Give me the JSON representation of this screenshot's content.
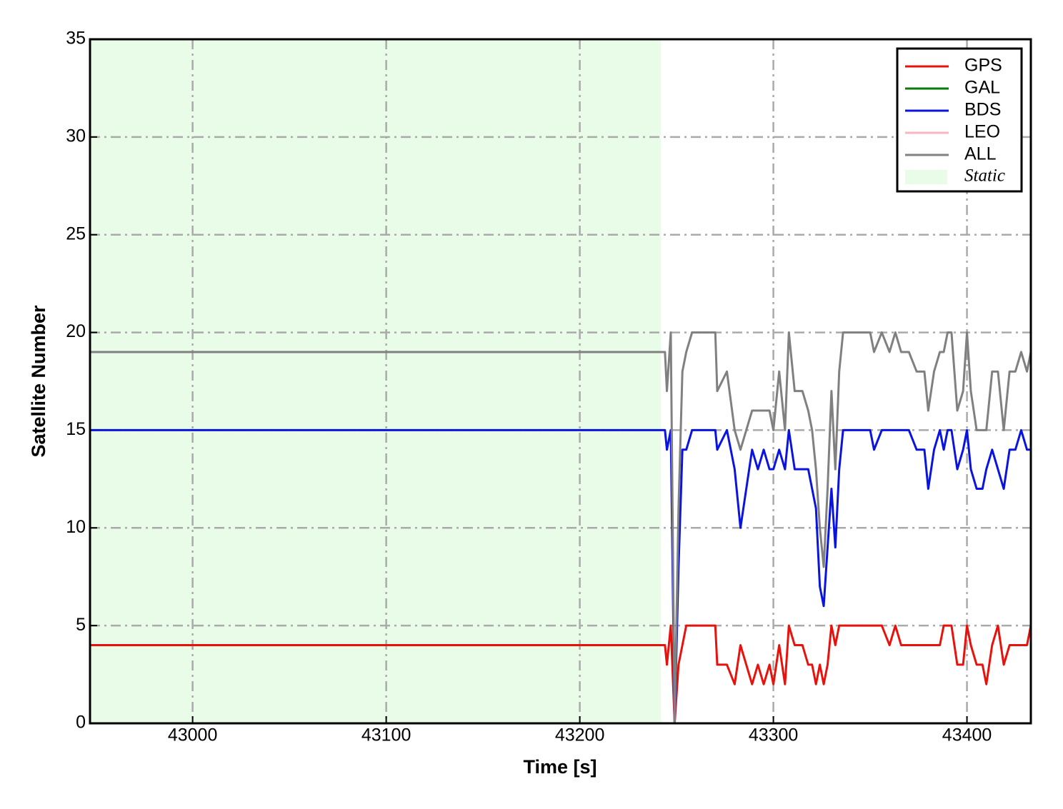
{
  "chart_data": {
    "type": "line",
    "xlabel": "Time [s]",
    "ylabel": "Satellite Number",
    "xlim": [
      42947,
      43433
    ],
    "ylim": [
      0,
      35
    ],
    "xticks": [
      43000,
      43100,
      43200,
      43300,
      43400
    ],
    "yticks": [
      0,
      5,
      10,
      15,
      20,
      25,
      30,
      35
    ],
    "grid": true,
    "legend": "upper right",
    "span": {
      "label": "Static",
      "xrange": [
        42947,
        43242
      ],
      "color": "#e8fce8"
    },
    "x": [
      42947,
      43242,
      43244,
      43245,
      43247,
      43249,
      43251,
      43253,
      43255,
      43258,
      43262,
      43266,
      43270,
      43271,
      43276,
      43280,
      43283,
      43286,
      43289,
      43292,
      43295,
      43298,
      43300,
      43303,
      43306,
      43308,
      43311,
      43315,
      43318,
      43320,
      43322,
      43324,
      43326,
      43328,
      43330,
      43332,
      43334,
      43336,
      43340,
      43345,
      43350,
      43352,
      43356,
      43360,
      43363,
      43366,
      43370,
      43374,
      43378,
      43380,
      43383,
      43386,
      43388,
      43390,
      43392,
      43395,
      43398,
      43400,
      43402,
      43405,
      43408,
      43410,
      43413,
      43416,
      43419,
      43422,
      43425,
      43428,
      43431,
      43433
    ],
    "series": [
      {
        "name": "GPS",
        "color": "#e8120c",
        "values": [
          4,
          4,
          4,
          3,
          5,
          0,
          3,
          4,
          5,
          5,
          5,
          5,
          5,
          3,
          3,
          2,
          4,
          3,
          2,
          3,
          2,
          3,
          2,
          4,
          2,
          5,
          4,
          4,
          3,
          3,
          2,
          3,
          2,
          3,
          5,
          4,
          5,
          5,
          5,
          5,
          5,
          5,
          5,
          4,
          5,
          4,
          4,
          4,
          4,
          4,
          4,
          4,
          5,
          5,
          5,
          3,
          3,
          5,
          4,
          3,
          3,
          2,
          4,
          5,
          3,
          4,
          4,
          4,
          4,
          5
        ]
      },
      {
        "name": "GAL",
        "color": "#0a7a0a",
        "values": [
          0,
          0,
          0,
          0,
          0,
          0,
          0,
          0,
          0,
          0,
          0,
          0,
          0,
          0,
          0,
          0,
          0,
          0,
          0,
          0,
          0,
          0,
          0,
          0,
          0,
          0,
          0,
          0,
          0,
          0,
          0,
          0,
          0,
          0,
          0,
          0,
          0,
          0,
          0,
          0,
          0,
          0,
          0,
          0,
          0,
          0,
          0,
          0,
          0,
          0,
          0,
          0,
          0,
          0,
          0,
          0,
          0,
          0,
          0,
          0,
          0,
          0,
          0,
          0,
          0,
          0,
          0,
          0,
          0,
          0
        ]
      },
      {
        "name": "BDS",
        "color": "#0a14e0",
        "values": [
          15,
          15,
          15,
          14,
          15,
          0,
          8,
          14,
          14,
          15,
          15,
          15,
          15,
          14,
          15,
          13,
          10,
          12,
          14,
          13,
          14,
          13,
          13,
          14,
          13,
          15,
          13,
          13,
          13,
          12,
          11,
          7,
          6,
          9,
          12,
          9,
          13,
          15,
          15,
          15,
          15,
          14,
          15,
          15,
          15,
          15,
          15,
          14,
          14,
          12,
          14,
          15,
          14,
          15,
          15,
          13,
          14,
          15,
          13,
          12,
          12,
          13,
          14,
          13,
          12,
          14,
          14,
          15,
          14,
          14
        ]
      },
      {
        "name": "LEO",
        "color": "#f7b6c2",
        "values": [
          0,
          0,
          0,
          0,
          0,
          0,
          0,
          0,
          0,
          0,
          0,
          0,
          0,
          0,
          0,
          0,
          0,
          0,
          0,
          0,
          0,
          0,
          0,
          0,
          0,
          0,
          0,
          0,
          0,
          0,
          0,
          0,
          0,
          0,
          0,
          0,
          0,
          0,
          0,
          0,
          0,
          0,
          0,
          0,
          0,
          0,
          0,
          0,
          0,
          0,
          0,
          0,
          0,
          0,
          0,
          0,
          0,
          0,
          0,
          0,
          0,
          0,
          0,
          0,
          0,
          0,
          0,
          0,
          0,
          0
        ]
      },
      {
        "name": "ALL",
        "color": "#808080",
        "values": [
          19,
          19,
          19,
          17,
          20,
          0,
          11,
          18,
          19,
          20,
          20,
          20,
          20,
          17,
          18,
          15,
          14,
          15,
          16,
          16,
          16,
          16,
          15,
          18,
          15,
          20,
          17,
          17,
          16,
          15,
          13,
          10,
          8,
          12,
          17,
          13,
          18,
          20,
          20,
          20,
          20,
          19,
          20,
          19,
          20,
          19,
          19,
          18,
          18,
          16,
          18,
          19,
          19,
          20,
          20,
          16,
          17,
          20,
          17,
          15,
          15,
          15,
          18,
          18,
          15,
          18,
          18,
          19,
          18,
          19
        ]
      }
    ]
  }
}
